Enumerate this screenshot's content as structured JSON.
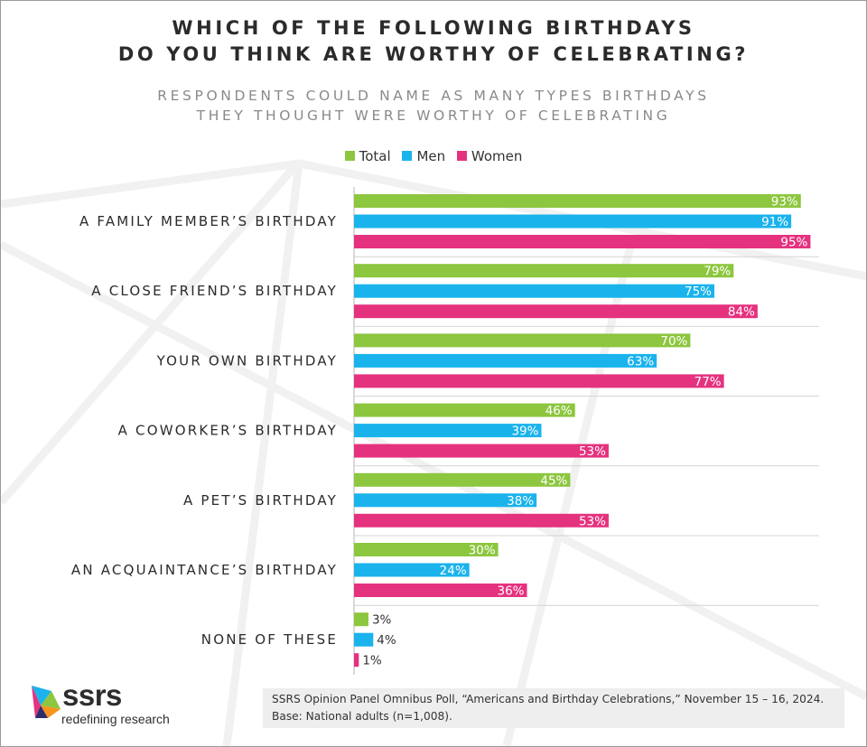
{
  "title": "WHICH OF THE FOLLOWING BIRTHDAYS\nDO YOU THINK ARE WORTHY OF CELEBRATING?",
  "subtitle": "RESPONDENTS COULD NAME AS MANY TYPES  BIRTHDAYS\nTHEY THOUGHT WERE WORTHY OF CELEBRATING",
  "legend": [
    {
      "label": "Total",
      "color": "#8dc63f"
    },
    {
      "label": "Men",
      "color": "#1ab3ec"
    },
    {
      "label": "Women",
      "color": "#e5327f"
    }
  ],
  "chart_data": {
    "type": "bar",
    "orientation": "horizontal",
    "title": "WHICH OF THE FOLLOWING BIRTHDAYS DO YOU THINK ARE WORTHY OF CELEBRATING?",
    "subtitle": "RESPONDENTS COULD NAME AS MANY TYPES  BIRTHDAYS THEY THOUGHT WERE WORTHY OF CELEBRATING",
    "categories": [
      "A FAMILY MEMBER’S BIRTHDAY",
      "A CLOSE FRIEND’S BIRTHDAY",
      "YOUR OWN BIRTHDAY",
      "A COWORKER’S BIRTHDAY",
      "A PET’S BIRTHDAY",
      "AN ACQUAINTANCE’S BIRTHDAY",
      "NONE OF THESE"
    ],
    "series": [
      {
        "name": "Total",
        "color": "#8dc63f",
        "values": [
          93,
          79,
          70,
          46,
          45,
          30,
          3
        ]
      },
      {
        "name": "Men",
        "color": "#1ab3ec",
        "values": [
          91,
          75,
          63,
          39,
          38,
          24,
          4
        ]
      },
      {
        "name": "Women",
        "color": "#e5327f",
        "values": [
          95,
          84,
          77,
          53,
          53,
          36,
          1
        ]
      }
    ],
    "value_suffix": "%",
    "xlim": [
      0,
      100
    ],
    "legend_position": "top",
    "grid": false
  },
  "logo": {
    "name": "ssrs",
    "tagline": "redefining research"
  },
  "source": {
    "line1": "SSRS Opinion Panel Omnibus Poll, “Americans and Birthday Celebrations,” November 15 – 16, 2024.",
    "line2": "Base: National adults (n=1,008)."
  }
}
